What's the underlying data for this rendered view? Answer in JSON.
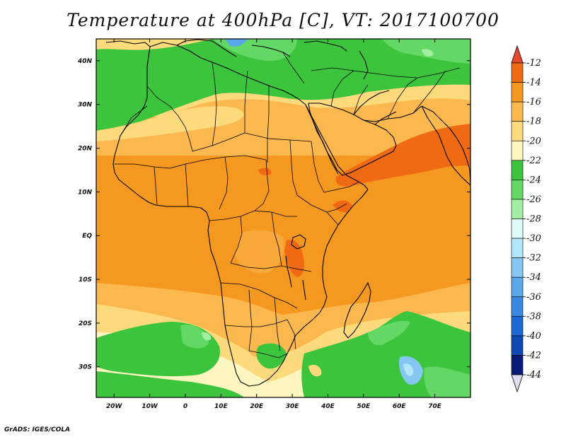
{
  "title": "Temperature at 400hPa [C], VT: 2017100700",
  "credit": "GrADS: IGES/COLA",
  "map": {
    "lon_range": [
      -25,
      80
    ],
    "lat_range": [
      -37,
      45
    ],
    "lon_ticks": [
      "20W",
      "10W",
      "0",
      "10E",
      "20E",
      "30E",
      "40E",
      "50E",
      "60E",
      "70E"
    ],
    "lat_ticks": [
      "40N",
      "30N",
      "20N",
      "10N",
      "EQ",
      "10S",
      "20S",
      "30S"
    ]
  },
  "colorbar": {
    "labels": [
      "-12",
      "-14",
      "-16",
      "-18",
      "-20",
      "-22",
      "-24",
      "-26",
      "-28",
      "-30",
      "-32",
      "-34",
      "-36",
      "-38",
      "-40",
      "-42",
      "-44"
    ],
    "colors": [
      "#e8482a",
      "#f06a14",
      "#f5981f",
      "#fbb84e",
      "#fdda7c",
      "#fef6c0",
      "#3cc43c",
      "#64d864",
      "#a2eea2",
      "#e0fafa",
      "#b2e6fa",
      "#86c6f2",
      "#5aa8ea",
      "#3a88e2",
      "#1e68d4",
      "#0e48b2",
      "#0a1a78",
      "#dcdcf0"
    ]
  }
}
